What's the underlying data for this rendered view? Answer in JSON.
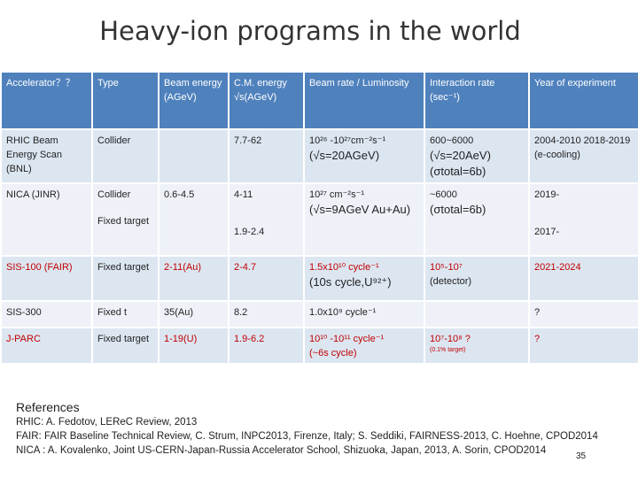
{
  "title": "Heavy-ion programs in the world",
  "colors": {
    "header": "#4f81bd",
    "row_a": "#dce6f1",
    "row_b": "#eef2f8",
    "highlight": "#c00000"
  },
  "header": {
    "accelerator": "Accelerator？？",
    "type": "Type",
    "beam_energy": "Beam energy (AGeV)",
    "cm_energy": "C.M. energy √s(AGeV)",
    "beam_rate": "Beam rate / Luminosity",
    "interaction_rate": "Interaction rate (sec⁻¹)",
    "year": "Year of experiment"
  },
  "rows": {
    "rhic": {
      "accelerator": "RHIC Beam Energy Scan (BNL)",
      "type": "Collider",
      "beam_energy": "",
      "cm_energy": "7.7-62",
      "beam_rate": "10²⁶ -10²⁷cm⁻²s⁻¹",
      "beam_rate_note": "(√s=20AGeV)",
      "interaction_rate": "600~6000",
      "interaction_rate_note": "(√s=20AeV)",
      "interaction_rate_note2": "(σtotal=6b)",
      "year": "2004-2010 2018-2019 (e-cooling)"
    },
    "nica": {
      "accelerator": "NICA (JINR)",
      "type": "Collider",
      "type2": "Fixed target",
      "beam_energy": "0.6-4.5",
      "cm_energy": "4-11",
      "cm_energy2": "1.9-2.4",
      "beam_rate": "10²⁷ cm⁻²s⁻¹",
      "beam_rate_note": "(√s=9AGeV Au+Au)",
      "interaction_rate": "~6000",
      "interaction_rate_note": "(σtotal=6b)",
      "year": "2019-",
      "year2": "2017-"
    },
    "sis100": {
      "accelerator": "SIS-100 (FAIR)",
      "type": "Fixed target",
      "beam_energy": "2-11(Au)",
      "cm_energy": "2-4.7",
      "beam_rate": "1.5x10¹⁰ cycle⁻¹",
      "beam_rate_note": "(10s cycle,U⁹²⁺)",
      "interaction_rate": "10⁵-10⁷",
      "interaction_rate_note": "(detector)",
      "year": "2021-2024"
    },
    "sis300": {
      "accelerator": "SIS-300",
      "type": "Fixed t",
      "beam_energy": "35(Au)",
      "cm_energy": "8.2",
      "beam_rate": "1.0x10⁹ cycle⁻¹",
      "interaction_rate": "",
      "year": "?"
    },
    "jparc": {
      "accelerator": "J-PARC",
      "type": "Fixed target",
      "beam_energy": "1-19(U)",
      "cm_energy": "1.9-6.2",
      "beam_rate": "10¹⁰ -10¹¹ cycle⁻¹",
      "beam_rate_note": "(~6s cycle)",
      "interaction_rate": "10⁷-10⁸ ?",
      "interaction_rate_note": "(0.1% target)",
      "year": "?"
    }
  },
  "references": {
    "heading": "References",
    "lines": [
      "RHIC: A. Fedotov, LEReC Review, 2013",
      "FAIR: FAIR Baseline Technical Review, C. Strum, INPC2013, Firenze, Italy; S. Seddiki, FAIRNESS-2013, C. Hoehne, CPOD2014",
      "NICA : A. Kovalenko, Joint US-CERN-Japan-Russia Accelerator School, Shizuoka, Japan, 2013, A. Sorin, CPOD2014"
    ]
  },
  "page_number": "35"
}
